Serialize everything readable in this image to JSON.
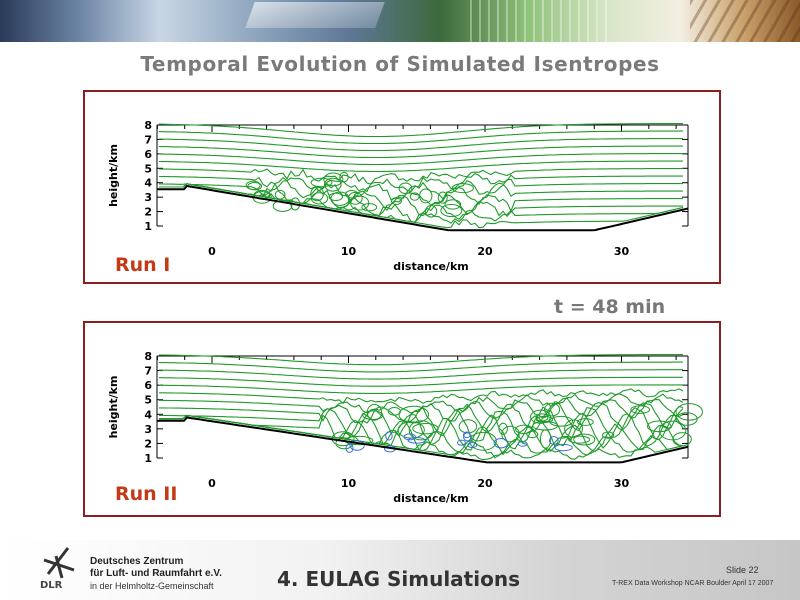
{
  "slide": {
    "title": "Temporal Evolution of Simulated Isentropes",
    "time_label": "t = 48 min",
    "section_title": "4. EULAG Simulations",
    "slide_number": "Slide 22",
    "conference": "T-REX Data Workshop NCAR Boulder April 17 2007"
  },
  "organization": {
    "line1": "Deutsches Zentrum",
    "line2": "für Luft- und Raumfahrt e.V.",
    "line3": "in der Helmholtz-Gemeinschaft",
    "logo_text": "DLR"
  },
  "colors": {
    "isentrope": "#1f9a2a",
    "turbulence": "#3b6fd6",
    "terrain": "#000000",
    "panel_border": "#8b1f1f",
    "run_label": "#c43a16"
  },
  "panels": [
    {
      "run_label": "Run I",
      "xlabel": "distance/km",
      "ylabel": "height/km",
      "x_ticks": [
        "0",
        "10",
        "20",
        "30"
      ],
      "y_ticks": [
        "1",
        "2",
        "3",
        "4",
        "5",
        "6",
        "7",
        "8"
      ]
    },
    {
      "run_label": "Run II",
      "xlabel": "distance/km",
      "ylabel": "height/km",
      "x_ticks": [
        "0",
        "10",
        "20",
        "30"
      ],
      "y_ticks": [
        "1",
        "2",
        "3",
        "4",
        "5",
        "6",
        "7",
        "8"
      ]
    }
  ]
}
